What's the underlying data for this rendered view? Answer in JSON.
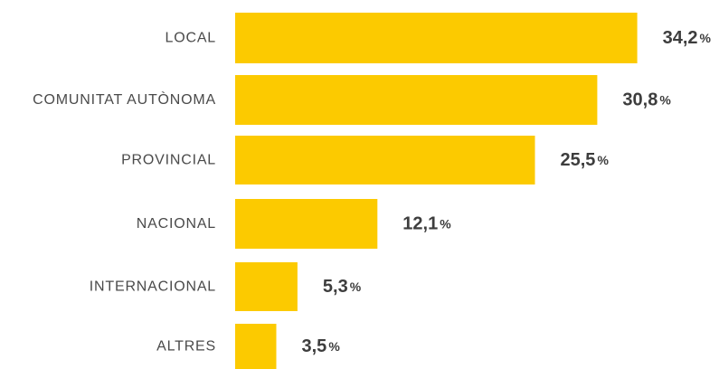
{
  "chart_data": {
    "type": "bar",
    "orientation": "horizontal",
    "categories": [
      "LOCAL",
      "COMUNITAT AUTÒNOMA",
      "PROVINCIAL",
      "NACIONAL",
      "INTERNACIONAL",
      "ALTRES"
    ],
    "values": [
      34.2,
      30.8,
      25.5,
      12.1,
      5.3,
      3.5
    ],
    "value_labels": [
      "34,2",
      "30,8",
      "25,5",
      "12,1",
      "5,3",
      "3,5"
    ],
    "unit": "%",
    "title": "",
    "xlabel": "",
    "ylabel": "",
    "grid": false,
    "legend": "none",
    "bar_color": "#fcca00",
    "text_color": "#3d3d3d"
  }
}
